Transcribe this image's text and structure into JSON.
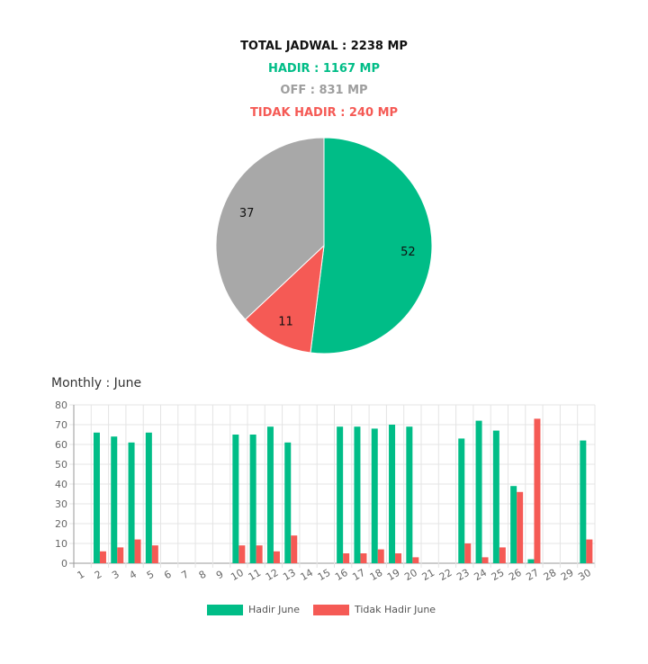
{
  "summary": {
    "total": "TOTAL JADWAL : 2238 MP",
    "hadir": "HADIR : 1167 MP",
    "off": "OFF : 831 MP",
    "tidak_hadir": "TIDAK HADIR : 240 MP"
  },
  "colors": {
    "hadir": "#00bd87",
    "off": "#a8a8a8",
    "tidak_hadir": "#f55a55"
  },
  "monthly_title": "Monthly : June",
  "chart_data": [
    {
      "type": "pie",
      "slices": [
        {
          "label": "HADIR",
          "value": 52,
          "color": "#00bd87"
        },
        {
          "label": "TIDAK HADIR",
          "value": 11,
          "color": "#f55a55"
        },
        {
          "label": "OFF",
          "value": 37,
          "color": "#a8a8a8"
        }
      ]
    },
    {
      "type": "bar",
      "categories": [
        "1",
        "2",
        "3",
        "4",
        "5",
        "6",
        "7",
        "8",
        "9",
        "10",
        "11",
        "12",
        "13",
        "14",
        "15",
        "16",
        "17",
        "18",
        "19",
        "20",
        "21",
        "22",
        "23",
        "24",
        "25",
        "26",
        "27",
        "28",
        "29",
        "30"
      ],
      "series": [
        {
          "name": "Hadir June",
          "color": "#00bd87",
          "values": [
            0,
            66,
            64,
            61,
            66,
            0,
            0,
            0,
            0,
            65,
            65,
            69,
            61,
            0,
            0,
            69,
            69,
            68,
            70,
            69,
            0,
            0,
            63,
            72,
            67,
            39,
            2,
            0,
            0,
            62
          ]
        },
        {
          "name": "Tidak Hadir June",
          "color": "#f55a55",
          "values": [
            0,
            6,
            8,
            12,
            9,
            0,
            0,
            0,
            0,
            9,
            9,
            6,
            14,
            0,
            0,
            5,
            5,
            7,
            5,
            3,
            0,
            0,
            10,
            3,
            8,
            36,
            73,
            0,
            0,
            12
          ]
        }
      ],
      "ylim": [
        0,
        80
      ],
      "yticks": [
        0,
        10,
        20,
        30,
        40,
        50,
        60,
        70,
        80
      ],
      "grid": true,
      "legend": "bottom"
    }
  ]
}
